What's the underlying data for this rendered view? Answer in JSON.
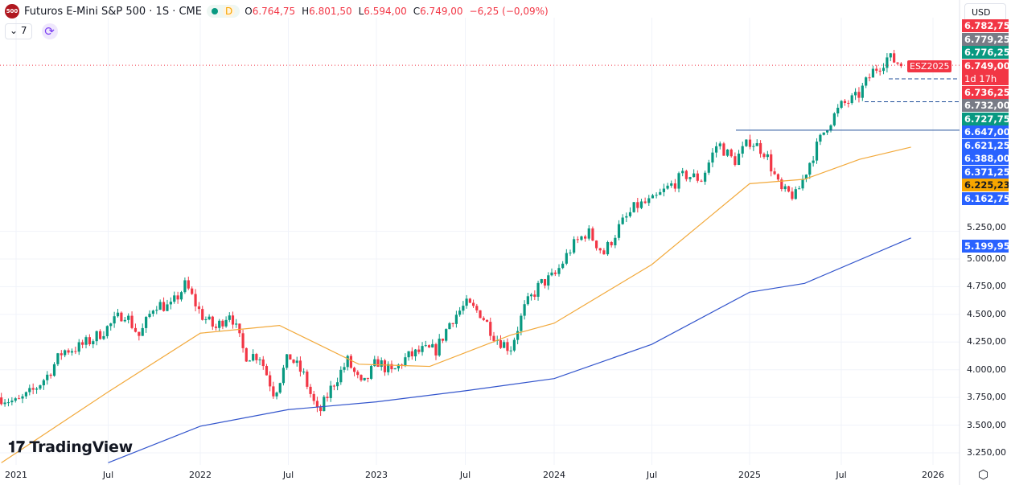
{
  "header": {
    "logo_text": "500",
    "title": "Futuros E-Mini S&P 500 · 1S · CME",
    "badge": "D",
    "open_label": "O",
    "open": "6.764,75",
    "high_label": "H",
    "high": "6.801,50",
    "low_label": "L",
    "low": "6.594,00",
    "close_label": "C",
    "close": "6.749,00",
    "change": "−6,25 (−0,09%)",
    "indicators_count": "7",
    "currency": "USD"
  },
  "colors": {
    "up": "#089981",
    "down": "#f23645",
    "ma50": "#f2a93b",
    "ma200": "#3355cc",
    "level": "#1f4e99"
  },
  "symbol_tag": "ESZ2025",
  "countdown": "1d 17h",
  "price_labels": [
    {
      "text": "6.782,75",
      "color": "#f23645"
    },
    {
      "text": "6.779,25",
      "color": "#787b86"
    },
    {
      "text": "6.776,25",
      "color": "#089981"
    },
    {
      "text": "6.749,00",
      "color": "#f23645"
    },
    {
      "text": "1d 17h",
      "color": "#f23645"
    },
    {
      "text": "6.736,25",
      "color": "#f23645"
    },
    {
      "text": "6.732,00",
      "color": "#787b86"
    },
    {
      "text": "6.727,75",
      "color": "#089981"
    },
    {
      "text": "6.647,00",
      "color": "#2962ff"
    },
    {
      "text": "6.621,25",
      "color": "#2962ff"
    },
    {
      "text": "6.388,00",
      "color": "#2962ff"
    },
    {
      "text": "6.371,25",
      "color": "#2962ff"
    },
    {
      "text": "6.225,23",
      "color": "#f7a600"
    },
    {
      "text": "6.162,75",
      "color": "#2962ff"
    }
  ],
  "ma200_label": "5.199,95",
  "brand": "TradingView",
  "chart_data": {
    "type": "candlestick",
    "interval": "1 week",
    "ylim": [
      3100,
      6900
    ],
    "y_ticks": [
      {
        "v": 5250,
        "t": "5.250,00"
      },
      {
        "v": 5000,
        "t": "5.000,00"
      },
      {
        "v": 4750,
        "t": "4.750,00"
      },
      {
        "v": 4500,
        "t": "4.500,00"
      },
      {
        "v": 4250,
        "t": "4.250,00"
      },
      {
        "v": 4000,
        "t": "4.000,00"
      },
      {
        "v": 3750,
        "t": "3.750,00"
      },
      {
        "v": 3500,
        "t": "3.500,00"
      },
      {
        "v": 3250,
        "t": "3.250,00"
      }
    ],
    "x_ticks": [
      {
        "v": 2021.0,
        "t": "2021"
      },
      {
        "v": 2021.5,
        "t": "Jul"
      },
      {
        "v": 2022.0,
        "t": "2022"
      },
      {
        "v": 2022.5,
        "t": "Jul"
      },
      {
        "v": 2023.0,
        "t": "2023"
      },
      {
        "v": 2023.5,
        "t": "Jul"
      },
      {
        "v": 2024.0,
        "t": "2024"
      },
      {
        "v": 2024.5,
        "t": "Jul"
      },
      {
        "v": 2025.0,
        "t": "2025"
      },
      {
        "v": 2025.5,
        "t": "Jul"
      },
      {
        "v": 2026.0,
        "t": "2026"
      }
    ],
    "monthly_closes_start": 2020.92,
    "monthly_closes": [
      3750,
      3700,
      3800,
      3950,
      4170,
      4200,
      4280,
      4390,
      4520,
      4300,
      4600,
      4560,
      4770,
      4500,
      4370,
      4530,
      4130,
      4130,
      3780,
      4130,
      3950,
      3590,
      3870,
      4080,
      3840,
      4080,
      3970,
      4110,
      4170,
      4180,
      4450,
      4590,
      4510,
      4290,
      4190,
      4570,
      4770,
      4850,
      5100,
      5250,
      5050,
      5300,
      5480,
      5520,
      5650,
      5760,
      5720,
      6050,
      5880,
      6070,
      5960,
      5610,
      5570,
      5910,
      6200,
      6390,
      6460,
      6690,
      6820,
      6749
    ],
    "series": [
      {
        "name": "MA 50",
        "points": [
          [
            2020.92,
            3160
          ],
          [
            2021.5,
            3800
          ],
          [
            2022.0,
            4330
          ],
          [
            2022.45,
            4400
          ],
          [
            2022.9,
            4050
          ],
          [
            2023.3,
            4030
          ],
          [
            2023.75,
            4310
          ],
          [
            2024.0,
            4420
          ],
          [
            2024.5,
            4950
          ],
          [
            2025.0,
            5680
          ],
          [
            2025.3,
            5720
          ],
          [
            2025.6,
            5900
          ],
          [
            2025.88,
            6010
          ]
        ]
      },
      {
        "name": "MA 200",
        "points": [
          [
            2021.5,
            3160
          ],
          [
            2022.0,
            3490
          ],
          [
            2022.5,
            3640
          ],
          [
            2023.0,
            3710
          ],
          [
            2023.5,
            3810
          ],
          [
            2024.0,
            3920
          ],
          [
            2024.5,
            4230
          ],
          [
            2025.0,
            4700
          ],
          [
            2025.3,
            4780
          ],
          [
            2025.88,
            5190
          ]
        ]
      }
    ],
    "levels": [
      {
        "price": 6162.75,
        "from": 2024.93
      },
      {
        "price": 6749,
        "style": "dotted",
        "from": 2020.9
      }
    ]
  }
}
